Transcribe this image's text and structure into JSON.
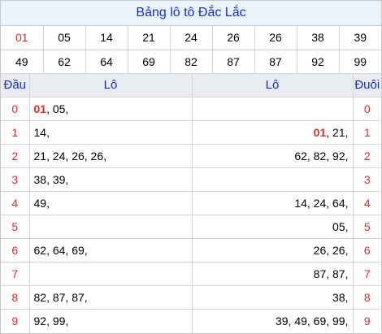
{
  "title": "Bảng lô tô Đắc Lắc",
  "numbers_row1": [
    "01",
    "05",
    "14",
    "21",
    "24",
    "26",
    "26",
    "38",
    "39"
  ],
  "numbers_row2": [
    "49",
    "62",
    "64",
    "69",
    "82",
    "87",
    "87",
    "92",
    "99"
  ],
  "header": {
    "dau": "Đầu",
    "lo_left": "Lô",
    "lo_right": "Lô",
    "duoi": "Đuôi"
  },
  "rows": [
    {
      "dau": "0",
      "left_hl": "01",
      "left": ", 05,",
      "right_hl": "",
      "right": "",
      "duoi": "0"
    },
    {
      "dau": "1",
      "left_hl": "",
      "left": "14,",
      "right_hl": "01",
      "right": ", 21,",
      "duoi": "1"
    },
    {
      "dau": "2",
      "left_hl": "",
      "left": "21, 24, 26, 26,",
      "right_hl": "",
      "right": "62, 82, 92,",
      "duoi": "2"
    },
    {
      "dau": "3",
      "left_hl": "",
      "left": "38, 39,",
      "right_hl": "",
      "right": "",
      "duoi": "3"
    },
    {
      "dau": "4",
      "left_hl": "",
      "left": "49,",
      "right_hl": "",
      "right": "14, 24, 64,",
      "duoi": "4"
    },
    {
      "dau": "5",
      "left_hl": "",
      "left": "",
      "right_hl": "",
      "right": "05,",
      "duoi": "5"
    },
    {
      "dau": "6",
      "left_hl": "",
      "left": "62, 64, 69,",
      "right_hl": "",
      "right": "26, 26,",
      "duoi": "6"
    },
    {
      "dau": "7",
      "left_hl": "",
      "left": "",
      "right_hl": "",
      "right": "87, 87,",
      "duoi": "7"
    },
    {
      "dau": "8",
      "left_hl": "",
      "left": "82, 87, 87,",
      "right_hl": "",
      "right": "38,",
      "duoi": "8"
    },
    {
      "dau": "9",
      "left_hl": "",
      "left": "92, 99,",
      "right_hl": "",
      "right": "39, 49, 69, 99,",
      "duoi": "9"
    }
  ],
  "colors": {
    "title_bg": "#e9f3fb",
    "title_text": "#1a2ec2",
    "highlight": "#d32f2f",
    "header_bg": "#e9ecf0"
  }
}
